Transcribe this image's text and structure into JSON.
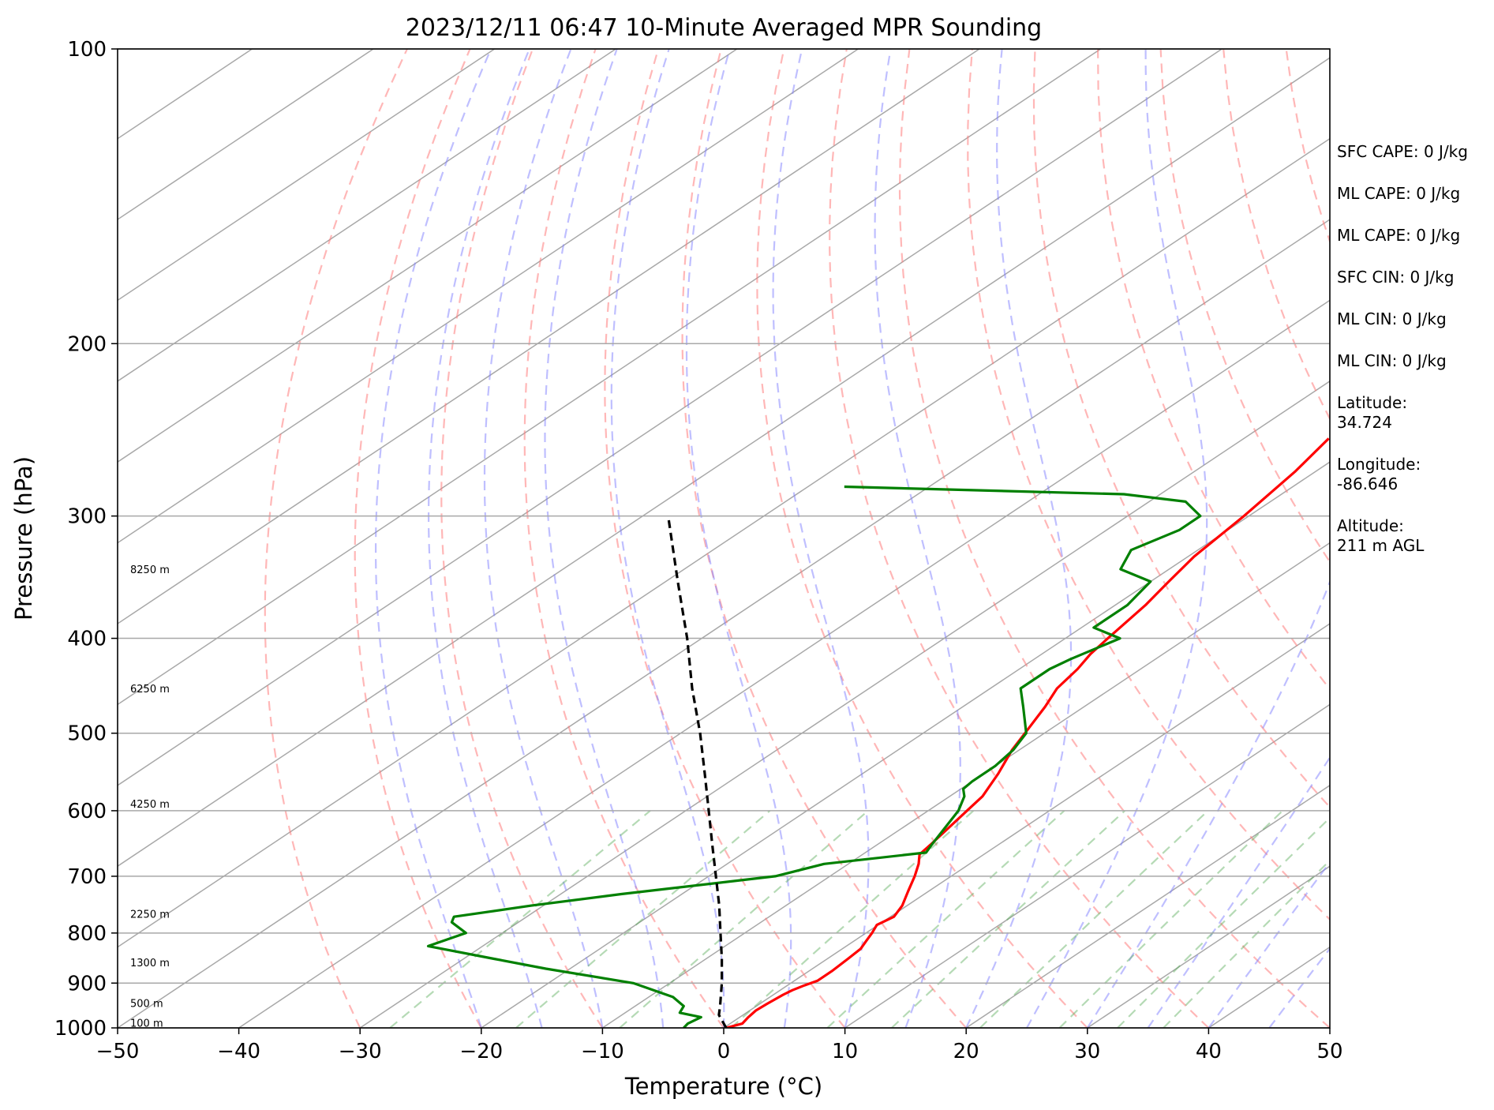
{
  "chart_data": {
    "type": "line",
    "title": "2023/12/11 06:47 10-Minute Averaged MPR Sounding",
    "xlabel": "Temperature (°C)",
    "ylabel": "Pressure (hPa)",
    "xlim": [
      -50,
      50
    ],
    "ylim": [
      1000,
      100
    ],
    "yscale": "log",
    "skew": true,
    "grid": true,
    "x_ticks": [
      "−50",
      "−40",
      "−30",
      "−20",
      "−10",
      "0",
      "10",
      "20",
      "30",
      "40",
      "50"
    ],
    "y_ticks": [
      "100",
      "200",
      "300",
      "400",
      "500",
      "600",
      "700",
      "800",
      "900",
      "1000"
    ],
    "series": [
      {
        "color": "#ff0000",
        "points": [
          [
            1000,
            0.2
          ],
          [
            990,
            1.0
          ],
          [
            975,
            0.7
          ],
          [
            960,
            0.5
          ],
          [
            945,
            0.6
          ],
          [
            925,
            0.8
          ],
          [
            915,
            1.0
          ],
          [
            905,
            1.4
          ],
          [
            895,
            1.9
          ],
          [
            875,
            1.9
          ],
          [
            850,
            1.7
          ],
          [
            830,
            1.5
          ],
          [
            815,
            1.0
          ],
          [
            800,
            0.5
          ],
          [
            785,
            -0.1
          ],
          [
            770,
            0.3
          ],
          [
            750,
            -0.4
          ],
          [
            725,
            -1.7
          ],
          [
            700,
            -3.0
          ],
          [
            680,
            -4.2
          ],
          [
            665,
            -5.3
          ],
          [
            650,
            -5.6
          ],
          [
            600,
            -6.8
          ],
          [
            580,
            -7.3
          ],
          [
            550,
            -8.8
          ],
          [
            520,
            -10.6
          ],
          [
            500,
            -11.6
          ],
          [
            470,
            -13.2
          ],
          [
            450,
            -14.5
          ],
          [
            430,
            -15.2
          ],
          [
            415,
            -16.0
          ],
          [
            400,
            -16.5
          ],
          [
            370,
            -17.5
          ],
          [
            350,
            -18.5
          ],
          [
            330,
            -19.5
          ],
          [
            300,
            -20.4
          ],
          [
            270,
            -21.7
          ],
          [
            250,
            -23.0
          ]
        ]
      },
      {
        "color": "#008000",
        "points": [
          [
            1000,
            -3.3
          ],
          [
            990,
            -3.5
          ],
          [
            975,
            -3.2
          ],
          [
            965,
            -5.5
          ],
          [
            950,
            -6.0
          ],
          [
            930,
            -8.0
          ],
          [
            900,
            -13.0
          ],
          [
            870,
            -22.0
          ],
          [
            850,
            -27.5
          ],
          [
            825,
            -34.5
          ],
          [
            800,
            -33.0
          ],
          [
            780,
            -35.5
          ],
          [
            770,
            -36.0
          ],
          [
            750,
            -31.0
          ],
          [
            730,
            -25.0
          ],
          [
            700,
            -14.5
          ],
          [
            680,
            -12.0
          ],
          [
            662,
            -5.0
          ],
          [
            650,
            -5.5
          ],
          [
            600,
            -7.5
          ],
          [
            580,
            -8.8
          ],
          [
            570,
            -9.8
          ],
          [
            560,
            -10.0
          ],
          [
            540,
            -10.0
          ],
          [
            520,
            -10.5
          ],
          [
            500,
            -11.5
          ],
          [
            470,
            -15.0
          ],
          [
            450,
            -17.5
          ],
          [
            430,
            -17.5
          ],
          [
            420,
            -17.0
          ],
          [
            400,
            -15.5
          ],
          [
            390,
            -19.0
          ],
          [
            370,
            -19.0
          ],
          [
            350,
            -20.0
          ],
          [
            340,
            -24.0
          ],
          [
            325,
            -25.5
          ],
          [
            310,
            -24.0
          ],
          [
            300,
            -24.0
          ],
          [
            290,
            -27.0
          ],
          [
            285,
            -33.0
          ],
          [
            280,
            -57.0
          ]
        ]
      },
      {
        "color": "#000000",
        "dashed": true,
        "points": [
          [
            1000,
            0.2
          ],
          [
            970,
            -2.0
          ],
          [
            950,
            -3.0
          ],
          [
            900,
            -5.7
          ],
          [
            850,
            -8.7
          ],
          [
            800,
            -12.0
          ],
          [
            750,
            -15.5
          ],
          [
            700,
            -19.4
          ],
          [
            650,
            -23.6
          ],
          [
            600,
            -28.1
          ],
          [
            550,
            -33.0
          ],
          [
            500,
            -38.4
          ],
          [
            450,
            -44.6
          ],
          [
            400,
            -51.2
          ],
          [
            350,
            -59.0
          ],
          [
            300,
            -67.9
          ]
        ]
      }
    ],
    "height_labels": [
      {
        "text": "100 m",
        "p": 988
      },
      {
        "text": "500 m",
        "p": 943
      },
      {
        "text": "1300 m",
        "p": 857
      },
      {
        "text": "2250 m",
        "p": 765
      },
      {
        "text": "4250 m",
        "p": 590
      },
      {
        "text": "6250 m",
        "p": 450
      },
      {
        "text": "8250 m",
        "p": 340
      }
    ]
  },
  "info": {
    "sfc_cape": "SFC CAPE: 0 J/kg",
    "ml_cape_1": "ML CAPE: 0 J/kg",
    "ml_cape_2": "ML CAPE: 0 J/kg",
    "sfc_cin": "SFC CIN: 0 J/kg",
    "ml_cin_1": "ML CIN: 0 J/kg",
    "ml_cin_2": "ML CIN: 0 J/kg",
    "latitude": "Latitude:\n34.724",
    "longitude": "Longitude:\n-86.646",
    "altitude": "Altitude:\n211 m AGL"
  }
}
